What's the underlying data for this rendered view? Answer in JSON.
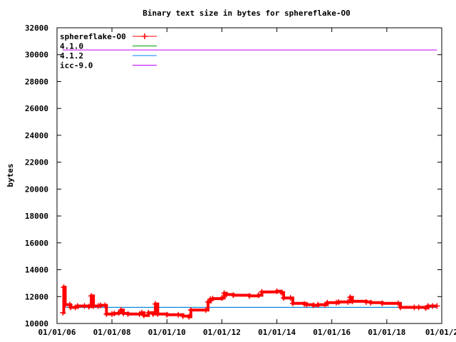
{
  "chart_data": {
    "type": "line",
    "title": "Binary text size in bytes for sphereflake-O0",
    "ylabel": "bytes",
    "xlabel": "",
    "xlim": [
      "2006-01-01",
      "2020-01-01"
    ],
    "ylim": [
      10000,
      32000
    ],
    "x_ticks": [
      "01/01/06",
      "01/01/08",
      "01/01/10",
      "01/01/12",
      "01/01/14",
      "01/01/16",
      "01/01/18",
      "01/01/2"
    ],
    "y_ticks": [
      "10000",
      "12000",
      "14000",
      "16000",
      "18000",
      "20000",
      "22000",
      "24000",
      "26000",
      "28000",
      "30000",
      "32000"
    ],
    "grid": false,
    "legend_position": "top-left",
    "series": [
      {
        "name": "sphereflake-O0",
        "color": "#ff0000",
        "marker": "plus",
        "points": [
          [
            "2006-03-20",
            10800
          ],
          [
            "2006-04-01",
            12700
          ],
          [
            "2006-04-20",
            11400
          ],
          [
            "2006-06-20",
            11400
          ],
          [
            "2006-07-01",
            11200
          ],
          [
            "2006-09-01",
            11200
          ],
          [
            "2006-10-01",
            11300
          ],
          [
            "2007-01-01",
            11300
          ],
          [
            "2007-03-01",
            11250
          ],
          [
            "2007-04-01",
            12050
          ],
          [
            "2007-05-01",
            11300
          ],
          [
            "2007-07-01",
            11300
          ],
          [
            "2007-08-01",
            11350
          ],
          [
            "2007-10-01",
            11350
          ],
          [
            "2007-10-20",
            10700
          ],
          [
            "2008-01-01",
            10700
          ],
          [
            "2008-02-01",
            10750
          ],
          [
            "2008-04-01",
            10800
          ],
          [
            "2008-05-01",
            11000
          ],
          [
            "2008-06-01",
            10750
          ],
          [
            "2008-08-01",
            10700
          ],
          [
            "2009-01-01",
            10700
          ],
          [
            "2009-02-01",
            10800
          ],
          [
            "2009-03-01",
            10600
          ],
          [
            "2009-05-01",
            10800
          ],
          [
            "2009-07-01",
            10700
          ],
          [
            "2009-08-01",
            11450
          ],
          [
            "2009-09-01",
            10700
          ],
          [
            "2010-01-01",
            10650
          ],
          [
            "2010-06-01",
            10650
          ],
          [
            "2010-08-01",
            10550
          ],
          [
            "2010-10-20",
            10500
          ],
          [
            "2010-11-15",
            11000
          ],
          [
            "2011-06-01",
            11000
          ],
          [
            "2011-07-01",
            11600
          ],
          [
            "2011-08-01",
            11800
          ],
          [
            "2011-09-01",
            11850
          ],
          [
            "2012-01-01",
            11900
          ],
          [
            "2012-02-01",
            12250
          ],
          [
            "2012-03-01",
            12150
          ],
          [
            "2012-06-01",
            12100
          ],
          [
            "2013-01-01",
            12050
          ],
          [
            "2013-05-01",
            12100
          ],
          [
            "2013-06-15",
            12350
          ],
          [
            "2014-01-01",
            12400
          ],
          [
            "2014-03-01",
            12300
          ],
          [
            "2014-04-01",
            11900
          ],
          [
            "2014-07-01",
            11900
          ],
          [
            "2014-08-01",
            11500
          ],
          [
            "2015-01-01",
            11450
          ],
          [
            "2015-02-01",
            11400
          ],
          [
            "2015-05-01",
            11350
          ],
          [
            "2015-07-01",
            11400
          ],
          [
            "2015-10-01",
            11400
          ],
          [
            "2015-11-01",
            11550
          ],
          [
            "2016-03-01",
            11550
          ],
          [
            "2016-04-01",
            11600
          ],
          [
            "2016-08-01",
            11600
          ],
          [
            "2016-09-01",
            11950
          ],
          [
            "2016-10-01",
            11650
          ],
          [
            "2017-04-01",
            11600
          ],
          [
            "2017-06-01",
            11550
          ],
          [
            "2017-11-01",
            11500
          ],
          [
            "2018-06-01",
            11500
          ],
          [
            "2018-07-01",
            11200
          ],
          [
            "2019-01-01",
            11200
          ],
          [
            "2019-03-01",
            11200
          ],
          [
            "2019-06-01",
            11150
          ],
          [
            "2019-07-01",
            11300
          ],
          [
            "2019-09-01",
            11300
          ],
          [
            "2019-10-30",
            11300
          ]
        ]
      },
      {
        "name": "4.1.0",
        "color": "#00a000",
        "points": [
          [
            "2006-03-20",
            11200
          ],
          [
            "2019-10-30",
            11200
          ]
        ]
      },
      {
        "name": "4.1.2",
        "color": "#0080ff",
        "points": [
          [
            "2006-03-20",
            11200
          ],
          [
            "2019-10-30",
            11200
          ]
        ]
      },
      {
        "name": "icc-9.0",
        "color": "#c000ff",
        "points": [
          [
            "2006-03-20",
            30350
          ],
          [
            "2019-10-30",
            30350
          ]
        ]
      }
    ]
  }
}
